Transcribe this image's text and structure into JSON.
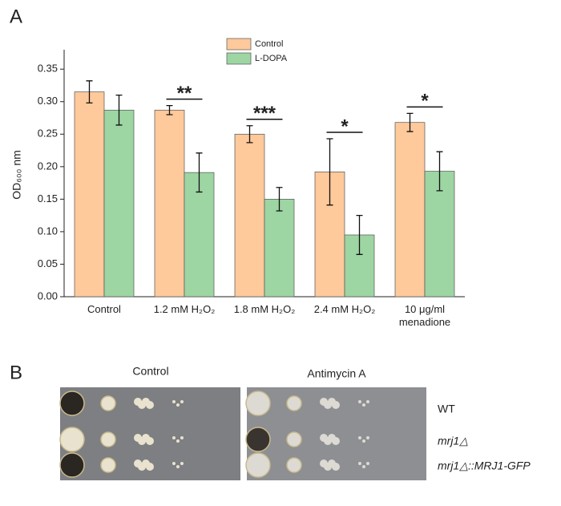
{
  "chart_data": {
    "type": "bar",
    "panel_label": "A",
    "ylabel": "OD₆₀₀ nm",
    "categories": [
      "Control",
      "1.2 mM H₂O₂",
      "1.8 mM H₂O₂",
      "2.4 mM H₂O₂",
      "10 μg/ml menadione"
    ],
    "series": [
      {
        "name": "Control",
        "color": "#fec99b",
        "values": [
          0.315,
          0.287,
          0.25,
          0.192,
          0.268
        ],
        "errors": [
          0.017,
          0.007,
          0.013,
          0.051,
          0.014
        ]
      },
      {
        "name": "L-DOPA",
        "color": "#9dd5a3",
        "values": [
          0.287,
          0.191,
          0.15,
          0.095,
          0.193
        ],
        "errors": [
          0.023,
          0.03,
          0.018,
          0.03,
          0.03
        ]
      }
    ],
    "annotations": [
      null,
      "**",
      "***",
      "*",
      "*"
    ],
    "ylim": [
      0,
      0.37
    ],
    "yticks": [
      {
        "value": 0,
        "label": "0.00"
      },
      0.05,
      {
        "value": 0.1,
        "label": "0.10"
      },
      0.15,
      {
        "value": 0.2,
        "label": "0.20"
      },
      0.25,
      {
        "value": 0.3,
        "label": "0.30"
      },
      0.35
    ],
    "legend": "top"
  },
  "panel_b": {
    "panel_label": "B",
    "columns": [
      "Control",
      "Antimycin A"
    ],
    "rows": [
      "WT",
      "mrj1△",
      "mrj1△::MRJ1-GFP"
    ]
  }
}
